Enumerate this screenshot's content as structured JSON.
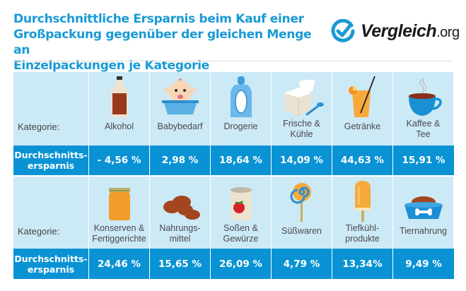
{
  "header": {
    "title_lines": [
      "Durchschnittliche Ersparnis beim Kauf einer",
      "Großpackung gegenüber der gleichen Menge an",
      "Einzelpackungen je Kategorie"
    ],
    "logo_brand": "Vergleich",
    "logo_tld": ".org"
  },
  "table": {
    "category_label": "Kategorie:",
    "savings_label_line1": "Durchschnitts-",
    "savings_label_line2": "ersparnis",
    "rows": [
      {
        "items": [
          {
            "lines": [
              "Alkohol"
            ],
            "value": "- 4,56 %",
            "icon": "liquor-bottle-icon"
          },
          {
            "lines": [
              "Babybedarf"
            ],
            "value": "2,98 %",
            "icon": "baby-bathtub-icon"
          },
          {
            "lines": [
              "Drogerie"
            ],
            "value": "18,64 %",
            "icon": "lotion-bottle-icon"
          },
          {
            "lines": [
              "Frische &",
              "Kühle"
            ],
            "value": "14,09 %",
            "icon": "yogurt-cup-icon"
          },
          {
            "lines": [
              "Getränke"
            ],
            "value": "44,63 %",
            "icon": "juice-glass-icon"
          },
          {
            "lines": [
              "Kaffee &",
              "Tee"
            ],
            "value": "15,91 %",
            "icon": "coffee-cup-icon"
          }
        ]
      },
      {
        "items": [
          {
            "lines": [
              "Konserven &",
              "Fertiggerichte"
            ],
            "value": "24,46 %",
            "icon": "jar-icon"
          },
          {
            "lines": [
              "Nahrungs-",
              "mittel"
            ],
            "value": "15,65 %",
            "icon": "potatoes-icon"
          },
          {
            "lines": [
              "Soßen &",
              "Gewürze"
            ],
            "value": "26,09 %",
            "icon": "tomato-can-icon"
          },
          {
            "lines": [
              "Süßwaren"
            ],
            "value": "4,79 %",
            "icon": "lollipop-icon"
          },
          {
            "lines": [
              "Tiefkühl-",
              "produkte"
            ],
            "value": "13,34%",
            "icon": "popsicle-icon"
          },
          {
            "lines": [
              "Tiernahrung"
            ],
            "value": "9,49 %",
            "icon": "pet-bowl-icon"
          }
        ]
      }
    ]
  },
  "colors": {
    "accent": "#1a9ad6",
    "value_row": "#0a93d4",
    "category_row": "#cce9f6"
  }
}
